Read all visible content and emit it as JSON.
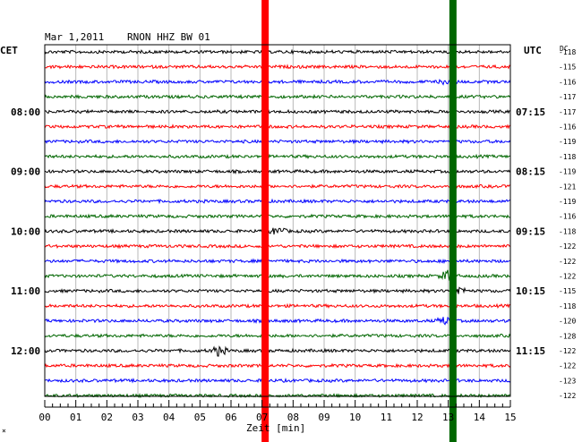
{
  "header": {
    "date": "Mar 1,2011",
    "station": "RNON HHZ BW 01",
    "left_tz": "CET",
    "right_tz": "UTC",
    "dc_label": "DC"
  },
  "chart_data": {
    "type": "line",
    "title": "Mar 1,2011   RNON HHZ BW 01",
    "xlabel": "Zeit [min]",
    "x_ticks": [
      "00",
      "01",
      "02",
      "03",
      "04",
      "05",
      "06",
      "07",
      "08",
      "09",
      "10",
      "11",
      "12",
      "13",
      "14",
      "15"
    ],
    "xlim": [
      0,
      15
    ],
    "trace_count": 24,
    "trace_colors": [
      "#000000",
      "#ff0000",
      "#0000ff",
      "#006600"
    ],
    "left_time_labels": [
      {
        "trace": 4,
        "text": "08:00"
      },
      {
        "trace": 8,
        "text": "09:00"
      },
      {
        "trace": 12,
        "text": "10:00"
      },
      {
        "trace": 16,
        "text": "11:00"
      },
      {
        "trace": 20,
        "text": "12:00"
      }
    ],
    "right_time_labels": [
      {
        "trace": 0,
        "text": "UTC"
      },
      {
        "trace": 4,
        "text": "07:15"
      },
      {
        "trace": 8,
        "text": "08:15"
      },
      {
        "trace": 12,
        "text": "09:15"
      },
      {
        "trace": 16,
        "text": "10:15"
      },
      {
        "trace": 20,
        "text": "11:15"
      }
    ],
    "dc_values": [
      "-118",
      "-115",
      "-116",
      "-117",
      "-117",
      "-116",
      "-119",
      "-118",
      "-119",
      "-121",
      "-119",
      "-116",
      "-118",
      "-122",
      "-122",
      "-122",
      "-115",
      "-118",
      "-120",
      "-128",
      "-122",
      "-122",
      "-123",
      "-122"
    ],
    "markers": [
      {
        "minute": 7.1,
        "color": "#ff0000"
      },
      {
        "minute": 13.15,
        "color": "#006600"
      }
    ],
    "events": [
      {
        "trace": 12,
        "minute": 7.5,
        "amp": 4
      },
      {
        "trace": 16,
        "minute": 13.3,
        "amp": 5
      },
      {
        "trace": 20,
        "minute": 5.6,
        "amp": 5
      },
      {
        "trace": 18,
        "minute": 12.9,
        "amp": 4
      },
      {
        "trace": 2,
        "minute": 13.0,
        "amp": 3
      },
      {
        "trace": 15,
        "minute": 13.0,
        "amp": 6
      }
    ]
  }
}
